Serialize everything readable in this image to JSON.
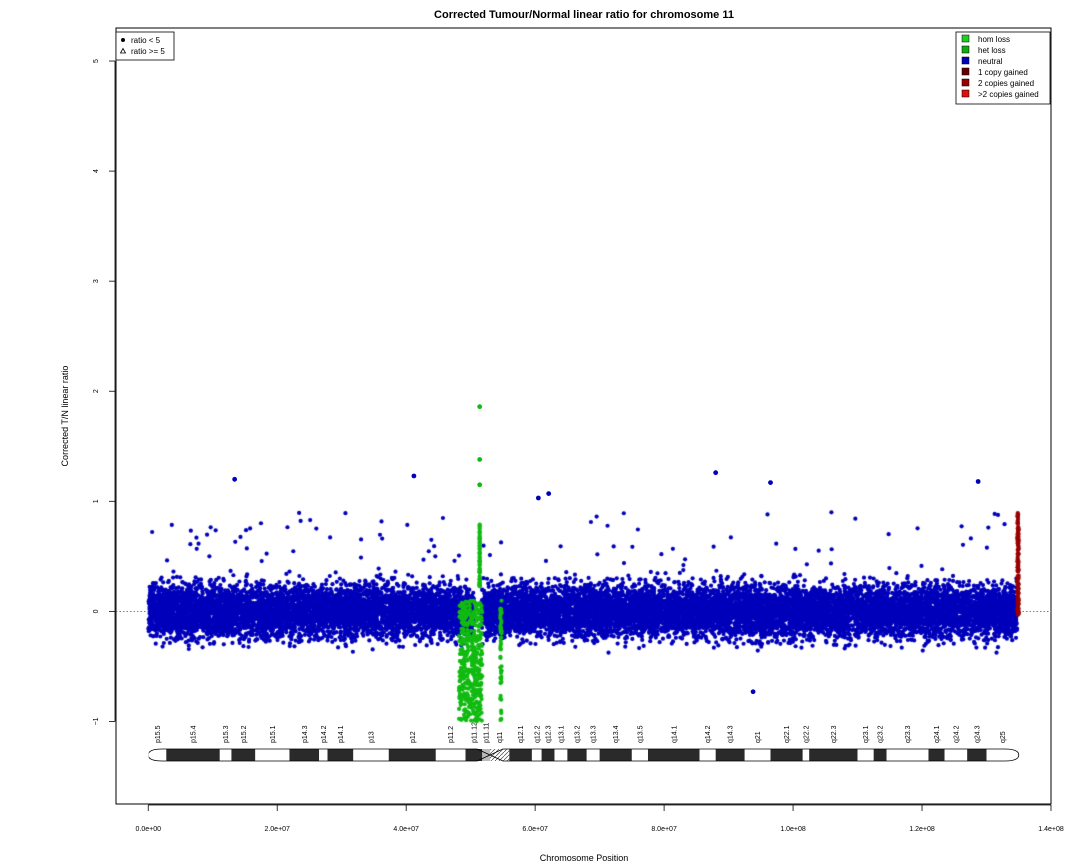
{
  "chart_data": {
    "type": "scatter",
    "title": "Corrected Tumour/Normal linear ratio for chromosome  11",
    "xlabel": "Chromosome Position",
    "ylabel": "Corrected T/N linear ratio",
    "xlim": [
      -5000000,
      140000000
    ],
    "ylim": [
      -1.75,
      5.3
    ],
    "x_ticks": [
      0,
      20000000,
      40000000,
      60000000,
      80000000,
      100000000,
      120000000,
      140000000
    ],
    "x_tick_labels": [
      "0.0e+00",
      "2.0e+07",
      "4.0e+07",
      "6.0e+07",
      "8.0e+07",
      "1.0e+08",
      "1.2e+08",
      "1.4e+08"
    ],
    "y_ticks": [
      -1,
      0,
      1,
      2,
      3,
      4,
      5
    ],
    "y_tick_labels": [
      "−1",
      "0",
      "1",
      "2",
      "3",
      "4",
      "5"
    ],
    "reference_line_y": 0,
    "grid": false,
    "shape_legend": {
      "placement": "top-left",
      "entries": [
        {
          "symbol": "dot",
          "label": "ratio < 5"
        },
        {
          "symbol": "triangle",
          "label": "ratio >= 5"
        }
      ]
    },
    "color_legend": {
      "placement": "top-right",
      "entries": [
        {
          "label": "hom loss",
          "color": "#22cc22"
        },
        {
          "label": "het loss",
          "color": "#11aa11"
        },
        {
          "label": "neutral",
          "color": "#0000bb"
        },
        {
          "label": "1 copy gained",
          "color": "#660000"
        },
        {
          "label": "2 copies gained",
          "color": "#990000"
        },
        {
          "label": ">2 copies gained",
          "color": "#dd1111"
        }
      ]
    },
    "series": [
      {
        "name": "neutral",
        "color": "#0000bb",
        "x_ranges": [
          [
            0,
            50500000
          ],
          [
            51700000,
            134800000
          ]
        ],
        "y_band": [
          -0.5,
          0.5
        ],
        "y_spread_max": [
          -0.7,
          1.25
        ]
      },
      {
        "name": "het loss",
        "color": "#11bb11",
        "x_ranges": [
          [
            48200000,
            51800000
          ],
          [
            54600000,
            54800000
          ]
        ],
        "y_band": [
          -1.0,
          0.1
        ]
      },
      {
        "name": "1 copy gained",
        "color": "#990000",
        "x_ranges": [
          [
            134800000,
            135000000
          ]
        ],
        "y_band": [
          -0.05,
          0.9
        ]
      }
    ],
    "notable_points": [
      {
        "x": 51400000,
        "y": 1.86,
        "series": "het loss"
      },
      {
        "x": 51400000,
        "y": 1.38,
        "series": "het loss"
      },
      {
        "x": 51400000,
        "y": 1.15,
        "series": "het loss"
      },
      {
        "x": 41200000,
        "y": 1.23,
        "series": "neutral"
      },
      {
        "x": 13400000,
        "y": 1.2,
        "series": "neutral"
      },
      {
        "x": 88000000,
        "y": 1.26,
        "series": "neutral"
      },
      {
        "x": 96500000,
        "y": 1.17,
        "series": "neutral"
      },
      {
        "x": 128700000,
        "y": 1.18,
        "series": "neutral"
      },
      {
        "x": 62100000,
        "y": 1.07,
        "series": "neutral"
      },
      {
        "x": 60500000,
        "y": 1.03,
        "series": "neutral"
      },
      {
        "x": 93800000,
        "y": -0.73,
        "series": "neutral"
      }
    ],
    "ideogram": {
      "chrom_length": 135000000,
      "centromere": [
        51000000,
        55000000
      ],
      "bands": [
        {
          "name": "p15.5",
          "start": 0,
          "end": 2800000,
          "stain": "gneg"
        },
        {
          "name": "p15.4",
          "start": 2800000,
          "end": 11100000,
          "stain": "gpos"
        },
        {
          "name": "p15.3",
          "start": 11100000,
          "end": 12900000,
          "stain": "gneg"
        },
        {
          "name": "p15.2",
          "start": 12900000,
          "end": 16600000,
          "stain": "gpos"
        },
        {
          "name": "p15.1",
          "start": 16600000,
          "end": 21900000,
          "stain": "gneg"
        },
        {
          "name": "p14.3",
          "start": 21900000,
          "end": 26500000,
          "stain": "gpos"
        },
        {
          "name": "p14.2",
          "start": 26500000,
          "end": 27800000,
          "stain": "gneg"
        },
        {
          "name": "p14.1",
          "start": 27800000,
          "end": 31800000,
          "stain": "gpos"
        },
        {
          "name": "p13",
          "start": 31800000,
          "end": 37300000,
          "stain": "gneg"
        },
        {
          "name": "p12",
          "start": 37300000,
          "end": 44600000,
          "stain": "gpos"
        },
        {
          "name": "p11.2",
          "start": 44600000,
          "end": 49200000,
          "stain": "gneg"
        },
        {
          "name": "p11.12",
          "start": 49200000,
          "end": 51800000,
          "stain": "gpos"
        },
        {
          "name": "p11.11",
          "start": 51800000,
          "end": 53000000,
          "stain": "acen"
        },
        {
          "name": "q11",
          "start": 53000000,
          "end": 56000000,
          "stain": "stalk"
        },
        {
          "name": "q12.1",
          "start": 56000000,
          "end": 59500000,
          "stain": "gpos"
        },
        {
          "name": "q12.2",
          "start": 59500000,
          "end": 61000000,
          "stain": "gneg"
        },
        {
          "name": "q12.3",
          "start": 61000000,
          "end": 63000000,
          "stain": "gpos"
        },
        {
          "name": "q13.1",
          "start": 63000000,
          "end": 65000000,
          "stain": "gneg"
        },
        {
          "name": "q13.2",
          "start": 65000000,
          "end": 68000000,
          "stain": "gpos"
        },
        {
          "name": "q13.3",
          "start": 68000000,
          "end": 70000000,
          "stain": "gneg"
        },
        {
          "name": "q13.4",
          "start": 70000000,
          "end": 75000000,
          "stain": "gpos"
        },
        {
          "name": "q13.5",
          "start": 75000000,
          "end": 77500000,
          "stain": "gneg"
        },
        {
          "name": "q14.1",
          "start": 77500000,
          "end": 85500000,
          "stain": "gpos"
        },
        {
          "name": "q14.2",
          "start": 85500000,
          "end": 88000000,
          "stain": "gneg"
        },
        {
          "name": "q14.3",
          "start": 88000000,
          "end": 92500000,
          "stain": "gpos"
        },
        {
          "name": "q21",
          "start": 92500000,
          "end": 96500000,
          "stain": "gneg"
        },
        {
          "name": "q22.1",
          "start": 96500000,
          "end": 101500000,
          "stain": "gpos"
        },
        {
          "name": "q22.2",
          "start": 101500000,
          "end": 102500000,
          "stain": "gneg"
        },
        {
          "name": "q22.3",
          "start": 102500000,
          "end": 110000000,
          "stain": "gpos"
        },
        {
          "name": "q23.1",
          "start": 110000000,
          "end": 112500000,
          "stain": "gneg"
        },
        {
          "name": "q23.2",
          "start": 112500000,
          "end": 114500000,
          "stain": "gpos"
        },
        {
          "name": "q23.3",
          "start": 114500000,
          "end": 121000000,
          "stain": "gneg"
        },
        {
          "name": "q24.1",
          "start": 121000000,
          "end": 123500000,
          "stain": "gpos"
        },
        {
          "name": "q24.2",
          "start": 123500000,
          "end": 127000000,
          "stain": "gneg"
        },
        {
          "name": "q24.3",
          "start": 127000000,
          "end": 130000000,
          "stain": "gpos"
        },
        {
          "name": "q25",
          "start": 130000000,
          "end": 135000000,
          "stain": "gneg"
        }
      ]
    }
  }
}
